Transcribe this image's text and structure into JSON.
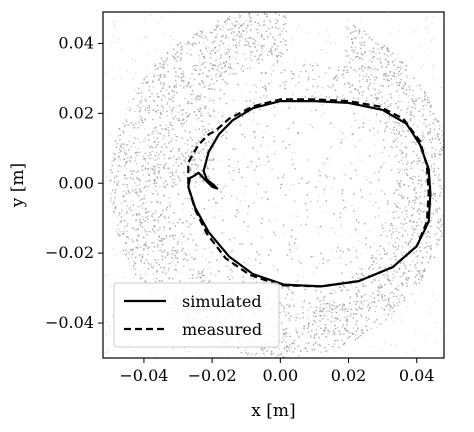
{
  "chart_data": {
    "type": "scatter",
    "xlabel": "x [m]",
    "ylabel": "y [m]",
    "xlim": [
      -0.052,
      0.048
    ],
    "ylim": [
      -0.05,
      0.049
    ],
    "x_ticks": [
      -0.04,
      -0.02,
      0.0,
      0.02,
      0.04
    ],
    "x_tick_labels": [
      "−0.04",
      "−0.02",
      "0.00",
      "0.02",
      "0.04"
    ],
    "y_ticks": [
      -0.04,
      -0.02,
      0.0,
      0.02,
      0.04
    ],
    "y_tick_labels": [
      "−0.04",
      "−0.02",
      "0.00",
      "0.02",
      "0.04"
    ],
    "grid": false,
    "legend_position": "lower-left",
    "background_points": {
      "description_of_region": "gray particle cloud",
      "center": [
        0.0,
        0.0
      ],
      "outer_radius": 0.05,
      "dense_annulus_inner_radius": 0.034,
      "gap_x_range": [
        0.002,
        0.019
      ],
      "gap_y_min": 0.034,
      "color": "#9a9a9a"
    },
    "series": [
      {
        "name": "simulated",
        "style": "solid",
        "color": "#000000",
        "points": [
          [
            -0.0255,
            0.002
          ],
          [
            -0.024,
            0.003
          ],
          [
            -0.022,
            0.001
          ],
          [
            -0.02,
            -0.001
          ],
          [
            -0.0185,
            -0.0015
          ],
          [
            -0.0195,
            -0.0005
          ],
          [
            -0.0215,
            0.001
          ],
          [
            -0.0225,
            0.0035
          ],
          [
            -0.021,
            0.009
          ],
          [
            -0.018,
            0.014
          ],
          [
            -0.014,
            0.018
          ],
          [
            -0.008,
            0.0215
          ],
          [
            0.0,
            0.0235
          ],
          [
            0.01,
            0.0235
          ],
          [
            0.02,
            0.023
          ],
          [
            0.03,
            0.021
          ],
          [
            0.037,
            0.017
          ],
          [
            0.041,
            0.011
          ],
          [
            0.0435,
            0.004
          ],
          [
            0.044,
            -0.003
          ],
          [
            0.0435,
            -0.011
          ],
          [
            0.04,
            -0.018
          ],
          [
            0.033,
            -0.024
          ],
          [
            0.023,
            -0.028
          ],
          [
            0.012,
            -0.0295
          ],
          [
            0.001,
            -0.029
          ],
          [
            -0.008,
            -0.026
          ],
          [
            -0.015,
            -0.021
          ],
          [
            -0.021,
            -0.014
          ],
          [
            -0.025,
            -0.007
          ],
          [
            -0.027,
            -0.001
          ],
          [
            -0.0265,
            0.0015
          ],
          [
            -0.0255,
            0.002
          ]
        ]
      },
      {
        "name": "measured",
        "style": "dashed",
        "color": "#000000",
        "points": [
          [
            -0.027,
            0.003
          ],
          [
            -0.027,
            0.006
          ],
          [
            -0.024,
            0.011
          ],
          [
            -0.021,
            0.014
          ],
          [
            -0.019,
            0.015
          ],
          [
            -0.015,
            0.0185
          ],
          [
            -0.008,
            0.022
          ],
          [
            0.0,
            0.024
          ],
          [
            0.01,
            0.024
          ],
          [
            0.02,
            0.0235
          ],
          [
            0.029,
            0.022
          ],
          [
            0.036,
            0.0185
          ],
          [
            0.041,
            0.012
          ],
          [
            0.043,
            0.005
          ],
          [
            0.0435,
            -0.003
          ],
          [
            0.043,
            -0.011
          ],
          [
            0.04,
            -0.018
          ],
          [
            0.033,
            -0.024
          ],
          [
            0.023,
            -0.028
          ],
          [
            0.012,
            -0.0295
          ],
          [
            0.0,
            -0.0292
          ],
          [
            -0.009,
            -0.0262
          ],
          [
            -0.016,
            -0.0215
          ],
          [
            -0.0215,
            -0.0145
          ],
          [
            -0.025,
            -0.0075
          ],
          [
            -0.027,
            -0.001
          ],
          [
            -0.027,
            0.003
          ]
        ]
      }
    ]
  }
}
